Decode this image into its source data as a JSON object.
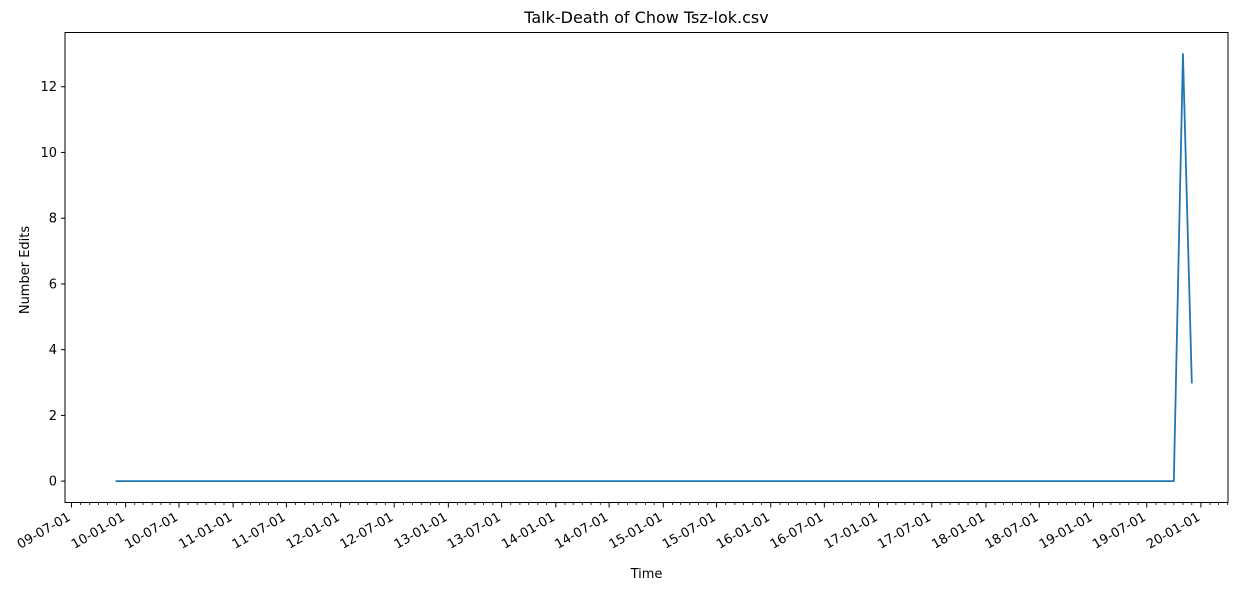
{
  "chart_data": {
    "type": "line",
    "title": "Talk-Death of Chow Tsz-lok.csv",
    "xlabel": "Time",
    "ylabel": "Number Edits",
    "grid": false,
    "legend": "none",
    "color": "#1f77b4",
    "xlim": [
      "2009-06-09",
      "2020-04-02"
    ],
    "ylim": [
      -0.65,
      13.65
    ],
    "yticks": [
      0,
      2,
      4,
      6,
      8,
      10,
      12
    ],
    "xticks": [
      {
        "date": "2009-07-01",
        "label": "09-07-01"
      },
      {
        "date": "2010-01-01",
        "label": "10-01-01"
      },
      {
        "date": "2010-07-01",
        "label": "10-07-01"
      },
      {
        "date": "2011-01-01",
        "label": "11-01-01"
      },
      {
        "date": "2011-07-01",
        "label": "11-07-01"
      },
      {
        "date": "2012-01-01",
        "label": "12-01-01"
      },
      {
        "date": "2012-07-01",
        "label": "12-07-01"
      },
      {
        "date": "2013-01-01",
        "label": "13-01-01"
      },
      {
        "date": "2013-07-01",
        "label": "13-07-01"
      },
      {
        "date": "2014-01-01",
        "label": "14-01-01"
      },
      {
        "date": "2014-07-01",
        "label": "14-07-01"
      },
      {
        "date": "2015-01-01",
        "label": "15-01-01"
      },
      {
        "date": "2015-07-01",
        "label": "15-07-01"
      },
      {
        "date": "2016-01-01",
        "label": "16-01-01"
      },
      {
        "date": "2016-07-01",
        "label": "16-07-01"
      },
      {
        "date": "2017-01-01",
        "label": "17-01-01"
      },
      {
        "date": "2017-07-01",
        "label": "17-07-01"
      },
      {
        "date": "2018-01-01",
        "label": "18-01-01"
      },
      {
        "date": "2018-07-01",
        "label": "18-07-01"
      },
      {
        "date": "2019-01-01",
        "label": "19-01-01"
      },
      {
        "date": "2019-07-01",
        "label": "19-07-01"
      },
      {
        "date": "2020-01-01",
        "label": "20-01-01"
      }
    ],
    "series": [
      {
        "x": [
          "2009-12-01",
          "2019-10-01",
          "2019-11-01",
          "2019-12-01"
        ],
        "y": [
          0,
          0,
          13,
          3
        ]
      }
    ]
  }
}
